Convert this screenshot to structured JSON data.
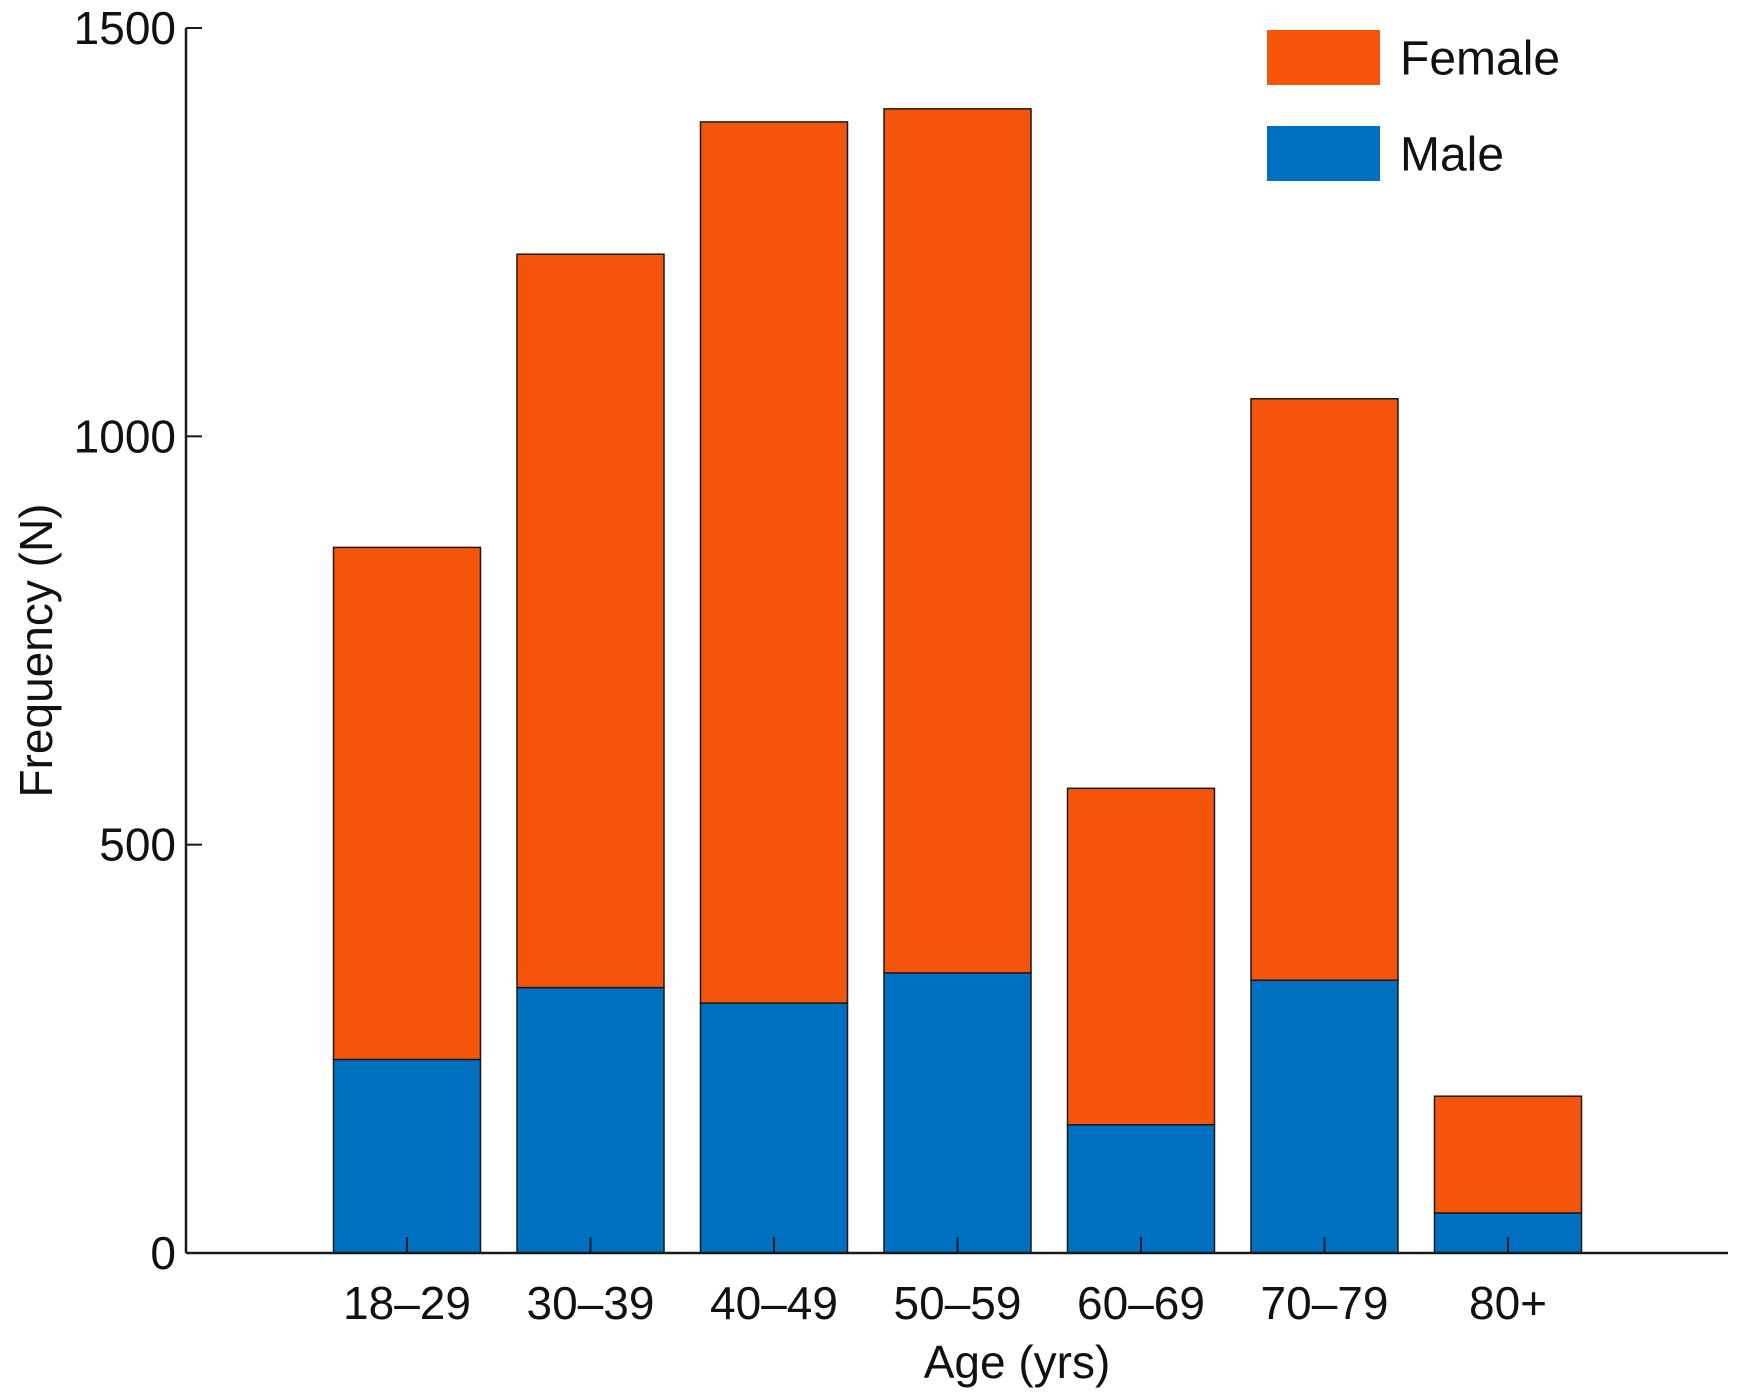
{
  "chart_data": {
    "type": "bar",
    "stacked": true,
    "xlabel": "Age (yrs)",
    "ylabel": "Frequency (N)",
    "ylim": [
      0,
      1500
    ],
    "yticks": [
      0,
      500,
      1000,
      1500
    ],
    "categories": [
      "18–29",
      "30–39",
      "40–49",
      "50–59",
      "60–69",
      "70–79",
      "80+"
    ],
    "series": [
      {
        "name": "Male",
        "color": "#0071c1",
        "values": [
          237,
          325,
          306,
          343,
          157,
          334,
          49
        ]
      },
      {
        "name": "Female",
        "color": "#f5540b",
        "values": [
          627,
          898,
          1079,
          1058,
          412,
          712,
          143
        ]
      }
    ],
    "legend": {
      "position": "top-right",
      "order": [
        "Female",
        "Male"
      ]
    },
    "grid": false
  }
}
